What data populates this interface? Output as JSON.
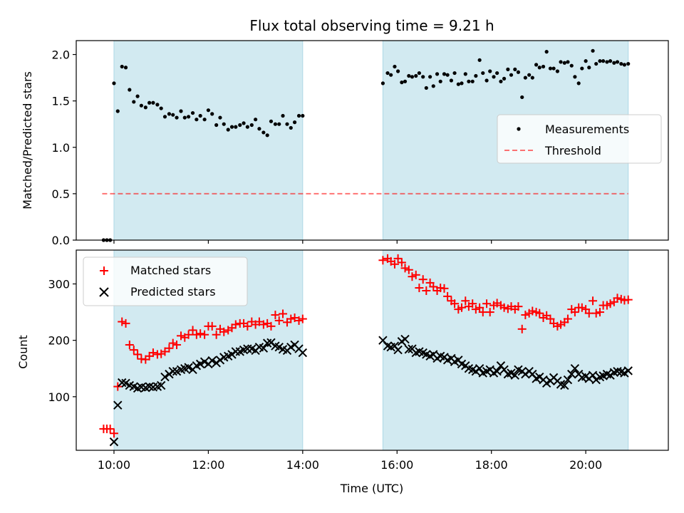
{
  "title": "Flux total observing time = 9.21 h",
  "colors": {
    "shade": "#add8e6",
    "measurements": "#000000",
    "threshold": "#ff0000",
    "matched": "#ff0000",
    "predicted": "#000000"
  },
  "xaxis": {
    "label": "Time (UTC)",
    "range_hours": [
      9.2,
      21.75
    ],
    "ticks": [
      {
        "hour": 10,
        "label": "10:00"
      },
      {
        "hour": 12,
        "label": "12:00"
      },
      {
        "hour": 14,
        "label": "14:00"
      },
      {
        "hour": 16,
        "label": "16:00"
      },
      {
        "hour": 18,
        "label": "18:00"
      },
      {
        "hour": 20,
        "label": "20:00"
      }
    ]
  },
  "shaded_intervals_hours": [
    [
      10.0,
      14.0
    ],
    [
      15.7,
      20.9
    ]
  ],
  "chart_data": [
    {
      "type": "scatter",
      "panel": "top",
      "ylabel": "Matched/Predicted stars",
      "ylim": [
        0,
        2.15
      ],
      "yticks": [
        {
          "value": 0.0,
          "label": "0.0"
        },
        {
          "value": 0.5,
          "label": "0.5"
        },
        {
          "value": 1.0,
          "label": "1.0"
        },
        {
          "value": 1.5,
          "label": "1.5"
        },
        {
          "value": 2.0,
          "label": "2.0"
        }
      ],
      "legend": {
        "position": "right",
        "entries": [
          "Measurements",
          "Threshold"
        ]
      },
      "threshold": {
        "name": "Threshold",
        "y": 0.5,
        "x_range_hours": [
          9.75,
          20.9
        ]
      },
      "series": [
        {
          "name": "Measurements",
          "marker": "dot",
          "x_hours": [
            9.78,
            9.85,
            9.92,
            10.0,
            10.08,
            10.17,
            10.25,
            10.33,
            10.42,
            10.5,
            10.58,
            10.67,
            10.75,
            10.83,
            10.92,
            11.0,
            11.08,
            11.17,
            11.25,
            11.33,
            11.42,
            11.5,
            11.58,
            11.67,
            11.75,
            11.83,
            11.92,
            12.0,
            12.08,
            12.17,
            12.25,
            12.33,
            12.42,
            12.5,
            12.58,
            12.67,
            12.75,
            12.83,
            12.92,
            13.0,
            13.08,
            13.17,
            13.25,
            13.33,
            13.42,
            13.5,
            13.58,
            13.67,
            13.75,
            13.83,
            13.92,
            14.0,
            15.7,
            15.8,
            15.87,
            15.95,
            16.02,
            16.1,
            16.17,
            16.25,
            16.32,
            16.4,
            16.47,
            16.55,
            16.62,
            16.7,
            16.77,
            16.85,
            16.92,
            17.0,
            17.07,
            17.15,
            17.22,
            17.3,
            17.37,
            17.45,
            17.52,
            17.6,
            17.67,
            17.75,
            17.82,
            17.9,
            17.97,
            18.05,
            18.12,
            18.2,
            18.27,
            18.35,
            18.42,
            18.5,
            18.57,
            18.65,
            18.72,
            18.8,
            18.87,
            18.95,
            19.02,
            19.1,
            19.17,
            19.25,
            19.32,
            19.4,
            19.47,
            19.55,
            19.62,
            19.7,
            19.77,
            19.85,
            19.92,
            20.0,
            20.07,
            20.15,
            20.22,
            20.3,
            20.37,
            20.45,
            20.52,
            20.6,
            20.67,
            20.75,
            20.82,
            20.9
          ],
          "y": [
            0.0,
            0.0,
            0.0,
            1.69,
            1.39,
            1.87,
            1.86,
            1.62,
            1.49,
            1.55,
            1.45,
            1.43,
            1.48,
            1.48,
            1.46,
            1.42,
            1.33,
            1.36,
            1.35,
            1.32,
            1.39,
            1.32,
            1.33,
            1.37,
            1.3,
            1.34,
            1.3,
            1.4,
            1.36,
            1.24,
            1.32,
            1.25,
            1.19,
            1.22,
            1.22,
            1.24,
            1.26,
            1.22,
            1.24,
            1.3,
            1.2,
            1.16,
            1.13,
            1.28,
            1.25,
            1.25,
            1.34,
            1.25,
            1.21,
            1.27,
            1.34,
            1.34,
            1.69,
            1.8,
            1.78,
            1.87,
            1.82,
            1.7,
            1.71,
            1.77,
            1.76,
            1.77,
            1.8,
            1.76,
            1.64,
            1.76,
            1.66,
            1.79,
            1.71,
            1.79,
            1.78,
            1.72,
            1.8,
            1.68,
            1.69,
            1.79,
            1.71,
            1.71,
            1.77,
            1.94,
            1.8,
            1.72,
            1.82,
            1.76,
            1.8,
            1.71,
            1.74,
            1.84,
            1.78,
            1.84,
            1.81,
            1.54,
            1.75,
            1.78,
            1.75,
            1.89,
            1.86,
            1.87,
            2.03,
            1.85,
            1.85,
            1.82,
            1.92,
            1.91,
            1.92,
            1.88,
            1.76,
            1.69,
            1.85,
            1.93,
            1.86,
            2.04,
            1.9,
            1.93,
            1.93,
            1.92,
            1.93,
            1.91,
            1.92,
            1.9,
            1.89,
            1.9
          ]
        }
      ]
    },
    {
      "type": "scatter",
      "panel": "bottom",
      "xlabel": "Time (UTC)",
      "ylabel": "Count",
      "ylim": [
        5,
        360
      ],
      "yticks": [
        {
          "value": 100,
          "label": "100"
        },
        {
          "value": 200,
          "label": "200"
        },
        {
          "value": 300,
          "label": "300"
        }
      ],
      "legend": {
        "position": "upper-left",
        "entries": [
          "Matched stars",
          "Predicted stars"
        ]
      },
      "series": [
        {
          "name": "Matched stars",
          "marker": "plus",
          "x_hours": [
            9.78,
            9.85,
            9.92,
            10.0,
            10.08,
            10.17,
            10.25,
            10.33,
            10.42,
            10.5,
            10.58,
            10.67,
            10.75,
            10.83,
            10.92,
            11.0,
            11.08,
            11.17,
            11.25,
            11.33,
            11.42,
            11.5,
            11.58,
            11.67,
            11.75,
            11.83,
            11.92,
            12.0,
            12.08,
            12.17,
            12.25,
            12.33,
            12.42,
            12.5,
            12.58,
            12.67,
            12.75,
            12.83,
            12.92,
            13.0,
            13.08,
            13.17,
            13.25,
            13.33,
            13.42,
            13.5,
            13.58,
            13.67,
            13.75,
            13.83,
            13.92,
            14.0,
            15.7,
            15.8,
            15.87,
            15.95,
            16.02,
            16.1,
            16.17,
            16.25,
            16.32,
            16.4,
            16.47,
            16.55,
            16.62,
            16.7,
            16.77,
            16.85,
            16.92,
            17.0,
            17.07,
            17.15,
            17.22,
            17.3,
            17.37,
            17.45,
            17.52,
            17.6,
            17.67,
            17.75,
            17.82,
            17.9,
            17.97,
            18.05,
            18.12,
            18.2,
            18.27,
            18.35,
            18.42,
            18.5,
            18.57,
            18.65,
            18.72,
            18.8,
            18.87,
            18.95,
            19.02,
            19.1,
            19.17,
            19.25,
            19.32,
            19.4,
            19.47,
            19.55,
            19.62,
            19.7,
            19.77,
            19.85,
            19.92,
            20.0,
            20.07,
            20.15,
            20.22,
            20.3,
            20.37,
            20.45,
            20.52,
            20.6,
            20.67,
            20.75,
            20.82,
            20.9
          ],
          "y": [
            43,
            43,
            43,
            35,
            118,
            233,
            230,
            192,
            183,
            175,
            167,
            166,
            172,
            178,
            175,
            176,
            180,
            186,
            195,
            192,
            208,
            205,
            210,
            218,
            210,
            212,
            210,
            225,
            225,
            210,
            220,
            215,
            218,
            222,
            228,
            230,
            230,
            225,
            233,
            228,
            233,
            228,
            230,
            225,
            245,
            235,
            247,
            232,
            238,
            240,
            235,
            238,
            342,
            345,
            340,
            335,
            345,
            338,
            328,
            325,
            313,
            316,
            293,
            308,
            288,
            302,
            295,
            288,
            293,
            292,
            278,
            270,
            265,
            255,
            258,
            270,
            260,
            265,
            255,
            258,
            250,
            265,
            250,
            262,
            266,
            262,
            258,
            256,
            260,
            255,
            260,
            220,
            245,
            248,
            252,
            250,
            248,
            240,
            244,
            238,
            230,
            225,
            228,
            232,
            238,
            255,
            250,
            258,
            258,
            255,
            248,
            270,
            248,
            250,
            262,
            262,
            265,
            268,
            275,
            273,
            271,
            272
          ]
        },
        {
          "name": "Predicted stars",
          "marker": "x",
          "x_hours": [
            9.78,
            9.85,
            9.92,
            10.0,
            10.08,
            10.17,
            10.25,
            10.33,
            10.42,
            10.5,
            10.58,
            10.67,
            10.75,
            10.83,
            10.92,
            11.0,
            11.08,
            11.17,
            11.25,
            11.33,
            11.42,
            11.5,
            11.58,
            11.67,
            11.75,
            11.83,
            11.92,
            12.0,
            12.08,
            12.17,
            12.25,
            12.33,
            12.42,
            12.5,
            12.58,
            12.67,
            12.75,
            12.83,
            12.92,
            13.0,
            13.08,
            13.17,
            13.25,
            13.33,
            13.42,
            13.5,
            13.58,
            13.67,
            13.75,
            13.83,
            13.92,
            14.0,
            15.7,
            15.8,
            15.87,
            15.95,
            16.02,
            16.1,
            16.17,
            16.25,
            16.32,
            16.4,
            16.47,
            16.55,
            16.62,
            16.7,
            16.77,
            16.85,
            16.92,
            17.0,
            17.07,
            17.15,
            17.22,
            17.3,
            17.37,
            17.45,
            17.52,
            17.6,
            17.67,
            17.75,
            17.82,
            17.9,
            17.97,
            18.05,
            18.12,
            18.2,
            18.27,
            18.35,
            18.42,
            18.5,
            18.57,
            18.65,
            18.72,
            18.8,
            18.87,
            18.95,
            19.02,
            19.1,
            19.17,
            19.25,
            19.32,
            19.4,
            19.47,
            19.55,
            19.62,
            19.7,
            19.77,
            19.85,
            19.92,
            20.0,
            20.07,
            20.15,
            20.22,
            20.3,
            20.37,
            20.45,
            20.52,
            20.6,
            20.67,
            20.75,
            20.82,
            20.9
          ],
          "y": [
            null,
            null,
            null,
            20,
            85,
            125,
            124,
            120,
            118,
            115,
            117,
            116,
            118,
            117,
            118,
            120,
            135,
            140,
            145,
            145,
            148,
            150,
            152,
            148,
            155,
            158,
            162,
            158,
            164,
            160,
            165,
            170,
            172,
            175,
            180,
            180,
            183,
            185,
            185,
            182,
            188,
            186,
            195,
            196,
            190,
            188,
            184,
            182,
            188,
            192,
            185,
            178,
            200,
            190,
            188,
            190,
            183,
            198,
            202,
            184,
            185,
            178,
            180,
            178,
            175,
            172,
            175,
            168,
            172,
            170,
            165,
            168,
            162,
            165,
            158,
            155,
            150,
            148,
            145,
            150,
            142,
            145,
            148,
            142,
            145,
            155,
            148,
            140,
            142,
            138,
            148,
            145,
            140,
            145,
            140,
            132,
            135,
            130,
            124,
            128,
            134,
            128,
            122,
            120,
            130,
            140,
            150,
            140,
            134,
            136,
            132,
            138,
            130,
            135,
            137,
            140,
            138,
            143,
            145,
            144,
            142,
            146
          ]
        }
      ]
    }
  ]
}
